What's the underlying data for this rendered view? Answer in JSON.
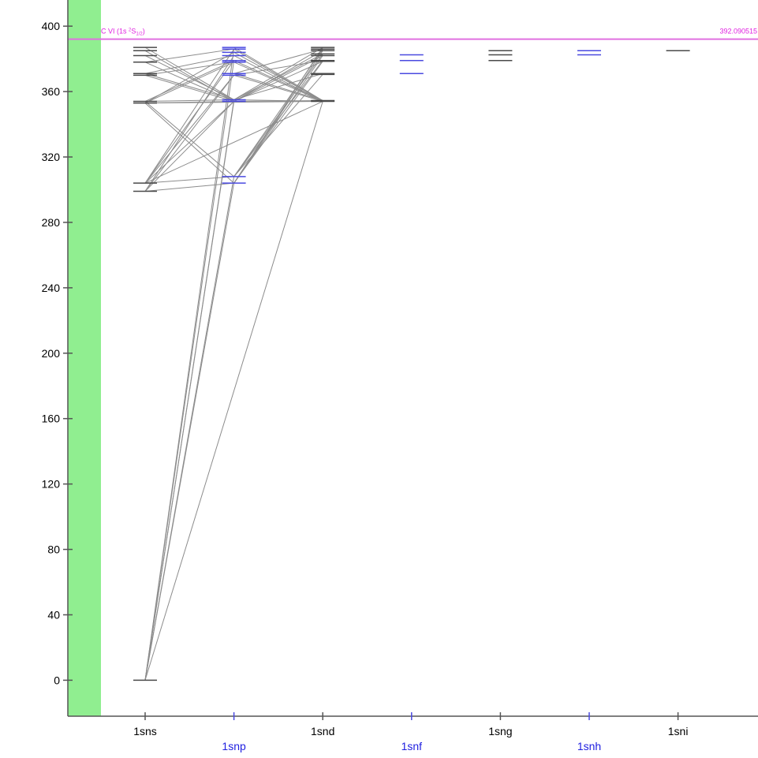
{
  "chart_data": {
    "type": "grotrian",
    "ylim": [
      -22,
      416
    ],
    "yticks": [
      0,
      40,
      80,
      120,
      160,
      200,
      240,
      280,
      320,
      360,
      400
    ],
    "ion_limit": {
      "label_main": "C VI (1s ",
      "label_sup": "2",
      "label_sym": "S",
      "label_sub": "1/2",
      "label_close": ")",
      "value_text": "392.090515",
      "energy": 392.09
    },
    "columns": [
      {
        "name": "1sns",
        "parity": "even",
        "levels": [
          0,
          299,
          304,
          353,
          354,
          370,
          371,
          378,
          382,
          385,
          387
        ]
      },
      {
        "name": "1snp",
        "parity": "odd",
        "levels": [
          304,
          308,
          354,
          355,
          370,
          371,
          378,
          379,
          382,
          384,
          386,
          387
        ]
      },
      {
        "name": "1snd",
        "parity": "even",
        "levels": [
          354,
          354.5,
          370.5,
          371,
          378.5,
          379,
          382,
          383,
          385,
          386,
          387
        ]
      },
      {
        "name": "1snf",
        "parity": "odd",
        "levels": [
          371,
          379,
          382.5
        ]
      },
      {
        "name": "1sng",
        "parity": "even",
        "levels": [
          379,
          382.5,
          385
        ]
      },
      {
        "name": "1snh",
        "parity": "odd",
        "levels": [
          382.5,
          385
        ]
      },
      {
        "name": "1sni",
        "parity": "even",
        "levels": [
          385
        ]
      }
    ],
    "transitions": [
      [
        0,
        0,
        0,
        1,
        0
      ],
      [
        0,
        0,
        0,
        1,
        1
      ],
      [
        0,
        0,
        0,
        1,
        2
      ],
      [
        0,
        0,
        0,
        1,
        3
      ],
      [
        0,
        0,
        0,
        1,
        7
      ],
      [
        0,
        0,
        0,
        1,
        10
      ],
      [
        0,
        0,
        0,
        2,
        0
      ],
      [
        0,
        1,
        0,
        1,
        0
      ],
      [
        0,
        1,
        0,
        1,
        2
      ],
      [
        0,
        1,
        0,
        1,
        4
      ],
      [
        0,
        1,
        0,
        1,
        8
      ],
      [
        0,
        2,
        0,
        1,
        1
      ],
      [
        0,
        2,
        0,
        1,
        2
      ],
      [
        0,
        2,
        0,
        1,
        4
      ],
      [
        0,
        2,
        0,
        1,
        7
      ],
      [
        0,
        2,
        0,
        1,
        10
      ],
      [
        0,
        3,
        0,
        1,
        0
      ],
      [
        0,
        3,
        0,
        1,
        2
      ],
      [
        0,
        3,
        0,
        1,
        6
      ],
      [
        0,
        3,
        0,
        1,
        9
      ],
      [
        0,
        4,
        0,
        1,
        1
      ],
      [
        0,
        4,
        0,
        1,
        3
      ],
      [
        0,
        4,
        0,
        1,
        7
      ],
      [
        0,
        5,
        0,
        1,
        2
      ],
      [
        0,
        5,
        0,
        1,
        6
      ],
      [
        0,
        6,
        0,
        1,
        3
      ],
      [
        0,
        6,
        0,
        1,
        8
      ],
      [
        0,
        7,
        0,
        1,
        2
      ],
      [
        0,
        7,
        0,
        1,
        10
      ],
      [
        0,
        8,
        0,
        1,
        3
      ],
      [
        0,
        9,
        0,
        1,
        2
      ],
      [
        0,
        10,
        0,
        1,
        3
      ],
      [
        0,
        2,
        0,
        2,
        0
      ],
      [
        0,
        3,
        0,
        2,
        0
      ],
      [
        1,
        0,
        0,
        2,
        4
      ],
      [
        1,
        0,
        0,
        2,
        6
      ],
      [
        1,
        0,
        0,
        2,
        8
      ],
      [
        1,
        0,
        0,
        2,
        10
      ],
      [
        1,
        1,
        0,
        2,
        2
      ],
      [
        1,
        1,
        0,
        2,
        5
      ],
      [
        1,
        1,
        0,
        2,
        7
      ],
      [
        1,
        1,
        0,
        2,
        9
      ],
      [
        1,
        2,
        0,
        2,
        1
      ],
      [
        1,
        2,
        0,
        2,
        4
      ],
      [
        1,
        2,
        0,
        2,
        6
      ],
      [
        1,
        2,
        0,
        2,
        8
      ],
      [
        1,
        3,
        0,
        2,
        0
      ],
      [
        1,
        3,
        0,
        2,
        3
      ],
      [
        1,
        3,
        0,
        2,
        7
      ],
      [
        1,
        3,
        0,
        2,
        10
      ],
      [
        1,
        4,
        0,
        2,
        0
      ],
      [
        1,
        4,
        0,
        2,
        5
      ],
      [
        1,
        5,
        0,
        2,
        1
      ],
      [
        1,
        5,
        0,
        2,
        9
      ],
      [
        1,
        6,
        0,
        2,
        0
      ],
      [
        1,
        7,
        0,
        2,
        1
      ],
      [
        1,
        8,
        0,
        2,
        0
      ],
      [
        1,
        9,
        0,
        2,
        1
      ],
      [
        1,
        10,
        0,
        2,
        0
      ],
      [
        1,
        11,
        0,
        2,
        1
      ]
    ]
  }
}
